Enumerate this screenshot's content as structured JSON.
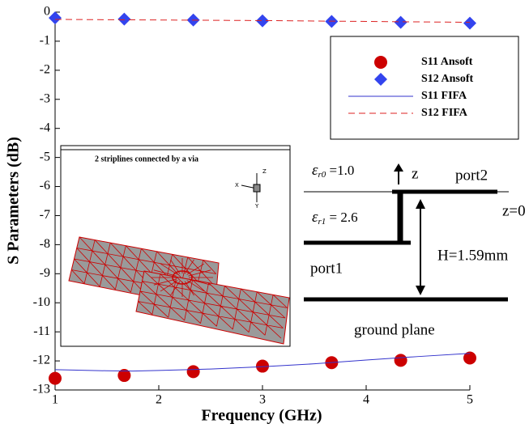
{
  "chart_data": {
    "type": "line",
    "xlabel": "Frequency (GHz)",
    "ylabel": "S Parameters (dB)",
    "xlim": [
      1,
      5
    ],
    "ylim": [
      -13,
      0
    ],
    "xticks": [
      1,
      2,
      3,
      4,
      5
    ],
    "yticks": [
      0,
      -1,
      -2,
      -3,
      -4,
      -5,
      -6,
      -7,
      -8,
      -9,
      -10,
      -11,
      -12,
      -13
    ],
    "series": [
      {
        "name": "S11 Ansoft",
        "marker": "circle",
        "color": "#cc0000",
        "x": [
          1,
          1.667,
          2.333,
          3,
          3.667,
          4.333,
          5
        ],
        "values": [
          -12.6,
          -12.5,
          -12.37,
          -12.18,
          -12.06,
          -11.98,
          -11.9
        ]
      },
      {
        "name": "S12 Ansoft",
        "marker": "diamond",
        "color": "#3344ee",
        "x": [
          1,
          1.667,
          2.333,
          3,
          3.667,
          4.333,
          5
        ],
        "values": [
          -0.2,
          -0.24,
          -0.27,
          -0.3,
          -0.32,
          -0.35,
          -0.38
        ]
      },
      {
        "name": "S11 FIFA",
        "marker": "solid",
        "color": "#3333cc",
        "x": [
          1,
          1.5,
          1.75,
          2,
          2.5,
          3,
          3.5,
          4,
          4.5,
          5
        ],
        "values": [
          -12.3,
          -12.34,
          -12.35,
          -12.33,
          -12.28,
          -12.2,
          -12.1,
          -11.97,
          -11.85,
          -11.74
        ]
      },
      {
        "name": "S12 FIFA",
        "marker": "dashed",
        "color": "#dd2222",
        "x": [
          1,
          2,
          3,
          4,
          5
        ],
        "values": [
          -0.25,
          -0.27,
          -0.29,
          -0.32,
          -0.35
        ]
      }
    ],
    "inset_title": "2 striplines connected by a via",
    "triad": {
      "x": "X",
      "y": "Y",
      "z": "Z"
    },
    "eps0": {
      "symbol": "ε",
      "sub": "r0",
      "text": " =1.0"
    },
    "eps1": {
      "symbol": "ε",
      "sub": "r1",
      "text": " = 2.6"
    },
    "labels": {
      "z": "z",
      "port2": "port2",
      "z0": "z=0",
      "port1": "port1",
      "height": "H=1.59mm",
      "ground": "ground plane"
    }
  }
}
